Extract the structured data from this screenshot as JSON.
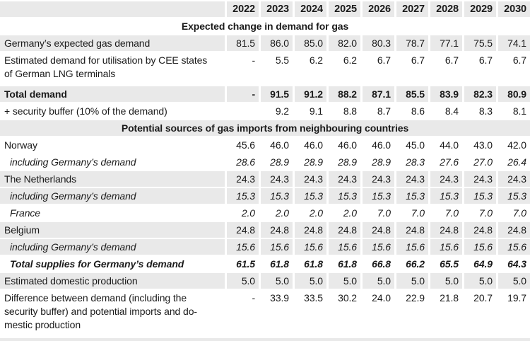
{
  "chart_data": {
    "type": "table",
    "title": "",
    "columns": [
      "",
      "2022",
      "2023",
      "2024",
      "2025",
      "2026",
      "2027",
      "2028",
      "2029",
      "2030"
    ],
    "rows": [
      {
        "kind": "section",
        "label": "Expected change in demand for gas",
        "shaded": false
      },
      {
        "kind": "data",
        "label": "Germany’s expected gas demand",
        "shaded": true,
        "values": [
          "81.5",
          "86.0",
          "85.0",
          "82.0",
          "80.3",
          "78.7",
          "77.1",
          "75.5",
          "74.1"
        ]
      },
      {
        "kind": "data",
        "label": "Estimated demand for utilisation by CEE states\nof German LNG terminals",
        "shaded": false,
        "lines": 2,
        "values": [
          "-",
          "5.5",
          "6.2",
          "6.2",
          "6.7",
          "6.7",
          "6.7",
          "6.7",
          "6.7"
        ]
      },
      {
        "kind": "data",
        "label": "Total demand",
        "bold": true,
        "shaded": true,
        "values": [
          "-",
          "91.5",
          "91.2",
          "88.2",
          "87.1",
          "85.5",
          "83.9",
          "82.3",
          "80.9"
        ]
      },
      {
        "kind": "data",
        "label": "+ security buffer (10% of the demand)",
        "shaded": false,
        "values": [
          "",
          "9.2",
          "9.1",
          "8.8",
          "8.7",
          "8.6",
          "8.4",
          "8.3",
          "8.1"
        ]
      },
      {
        "kind": "section",
        "label": "Potential sources of gas imports from neighbouring countries",
        "shaded": true
      },
      {
        "kind": "data",
        "label": "Norway",
        "shaded": false,
        "values": [
          "45.6",
          "46.0",
          "46.0",
          "46.0",
          "46.0",
          "45.0",
          "44.0",
          "43.0",
          "42.0"
        ]
      },
      {
        "kind": "data",
        "label": "including Germany’s demand",
        "italic": true,
        "indent": true,
        "shaded": false,
        "values": [
          "28.6",
          "28.9",
          "28.9",
          "28.9",
          "28.9",
          "28.3",
          "27.6",
          "27.0",
          "26.4"
        ]
      },
      {
        "kind": "data",
        "label": "The Netherlands",
        "shaded": true,
        "values": [
          "24.3",
          "24.3",
          "24.3",
          "24.3",
          "24.3",
          "24.3",
          "24.3",
          "24.3",
          "24.3"
        ]
      },
      {
        "kind": "data",
        "label": "including Germany’s demand",
        "italic": true,
        "indent": true,
        "shaded": true,
        "values": [
          "15.3",
          "15.3",
          "15.3",
          "15.3",
          "15.3",
          "15.3",
          "15.3",
          "15.3",
          "15.3"
        ]
      },
      {
        "kind": "data",
        "label": "France",
        "italic": true,
        "indent": true,
        "shaded": false,
        "values": [
          "2.0",
          "2.0",
          "2.0",
          "2.0",
          "7.0",
          "7.0",
          "7.0",
          "7.0",
          "7.0"
        ]
      },
      {
        "kind": "data",
        "label": "Belgium",
        "shaded": true,
        "values": [
          "24.8",
          "24.8",
          "24.8",
          "24.8",
          "24.8",
          "24.8",
          "24.8",
          "24.8",
          "24.8"
        ]
      },
      {
        "kind": "data",
        "label": "including Germany’s demand",
        "italic": true,
        "indent": true,
        "shaded": true,
        "values": [
          "15.6",
          "15.6",
          "15.6",
          "15.6",
          "15.6",
          "15.6",
          "15.6",
          "15.6",
          "15.6"
        ]
      },
      {
        "kind": "data",
        "label": "Total supplies for Germany’s demand",
        "bold": true,
        "italic": true,
        "indent": true,
        "shaded": false,
        "values": [
          "61.5",
          "61.8",
          "61.8",
          "61.8",
          "66.8",
          "66.2",
          "65.5",
          "64.9",
          "64.3"
        ]
      },
      {
        "kind": "data",
        "label": "Estimated domestic production",
        "shaded": true,
        "values": [
          "5.0",
          "5.0",
          "5.0",
          "5.0",
          "5.0",
          "5.0",
          "5.0",
          "5.0",
          "5.0"
        ]
      },
      {
        "kind": "data",
        "label": "Difference between demand (including the\nsecurity buffer) and potential imports and do-\nmestic production",
        "shaded": false,
        "lines": 3,
        "values": [
          "-",
          "33.9",
          "33.5",
          "30.2",
          "24.0",
          "22.9",
          "21.8",
          "20.7",
          "19.7"
        ]
      }
    ],
    "layout_hints": {
      "shade_color": "#e9e9e9",
      "text_color": "#1a1a1a",
      "background_color": "#ffffff",
      "section_titles_centered": true,
      "values_right_aligned": true,
      "bottom_rule": true
    }
  }
}
